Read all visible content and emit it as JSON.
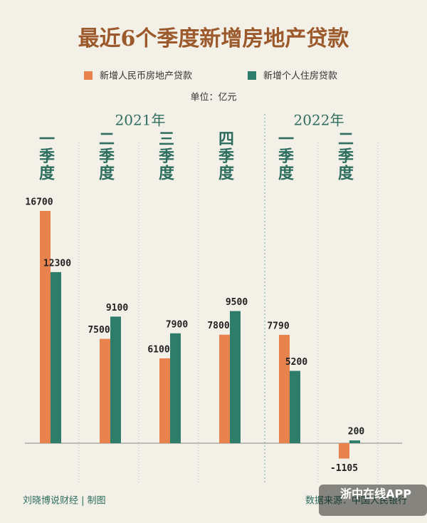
{
  "chart_data": {
    "type": "bar",
    "title": "最近6个季度新增房地产贷款",
    "unit": "单位：亿元",
    "x_groups": [
      "2021年",
      "2022年"
    ],
    "categories": [
      "一季度",
      "二季度",
      "三季度",
      "四季度",
      "一季度",
      "二季度"
    ],
    "series": [
      {
        "name": "新增人民币房地产贷款",
        "color": "#e8834e",
        "values": [
          16700,
          7500,
          6100,
          7800,
          7790,
          -1105
        ]
      },
      {
        "name": "新增个人住房贷款",
        "color": "#2e7d6b",
        "values": [
          12300,
          9100,
          7900,
          9500,
          5200,
          200
        ]
      }
    ]
  },
  "credit": "刘晓博说财经 | 制图",
  "source": "数据来源：中国人民银行",
  "watermark": "浙中在线APP"
}
